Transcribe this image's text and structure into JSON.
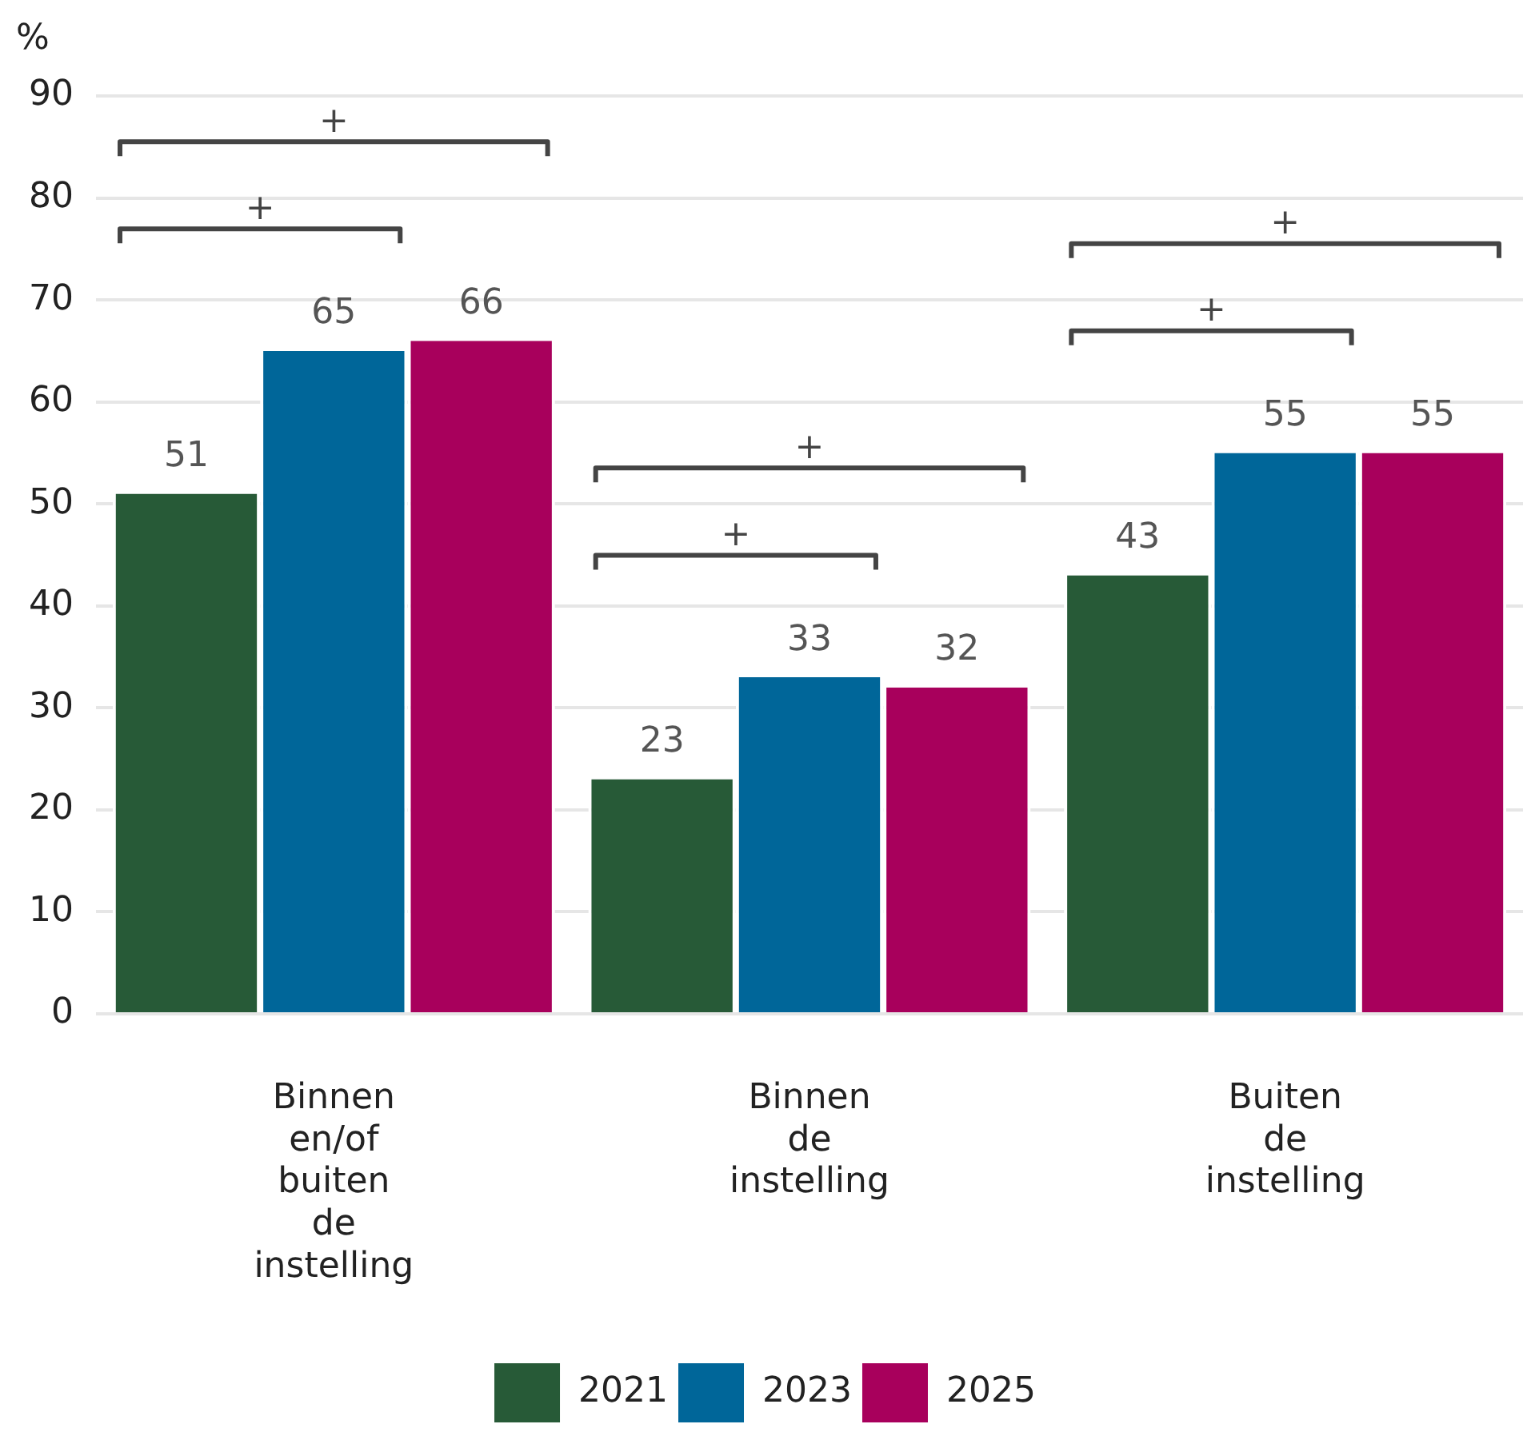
{
  "chart_data": {
    "type": "bar",
    "ylabel": "%",
    "categories": [
      "Binnen en/of buiten de instelling",
      "Binnen de instelling",
      "Buiten de instelling"
    ],
    "series": [
      {
        "name": "2021",
        "color": "#275a37",
        "values": [
          51,
          23,
          43
        ]
      },
      {
        "name": "2023",
        "color": "#006699",
        "values": [
          65,
          33,
          55
        ]
      },
      {
        "name": "2025",
        "color": "#a8005c",
        "values": [
          66,
          32,
          55
        ]
      }
    ],
    "ylim": [
      0,
      90
    ],
    "yticks": [
      0,
      10,
      20,
      30,
      40,
      50,
      60,
      70,
      80,
      90
    ],
    "grid": "y",
    "legend": "bottom",
    "data_labels": true,
    "annotations": [
      "+",
      "+",
      "+",
      "+",
      "+",
      "+"
    ]
  }
}
